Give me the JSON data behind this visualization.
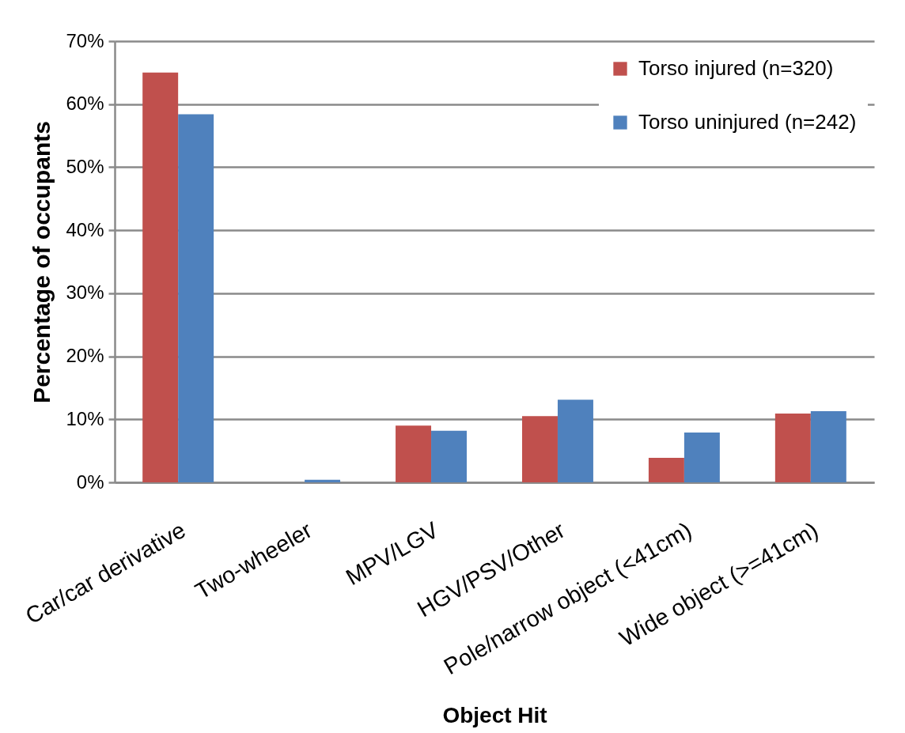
{
  "chart_data": {
    "type": "bar",
    "xlabel": "Object Hit",
    "ylabel": "Percentage of occupants",
    "categories": [
      "Car/car derivative",
      "Two-wheeler",
      "MPV/LGV",
      "HGV/PSV/Other",
      "Pole/narrow object (<41cm)",
      "Wide object (>=41cm)"
    ],
    "series": [
      {
        "name": "Torso injured (n=320)",
        "color": "#c0504d",
        "values": [
          65.0,
          0,
          9.0,
          10.5,
          3.9,
          10.9
        ]
      },
      {
        "name": "Torso uninjured (n=242)",
        "color": "#4f81bd",
        "values": [
          58.4,
          0.4,
          8.2,
          13.1,
          7.9,
          11.3
        ]
      }
    ],
    "ylim": [
      0,
      70
    ],
    "yticks": [
      {
        "value": 0,
        "label": "0%"
      },
      {
        "value": 10,
        "label": "10%"
      },
      {
        "value": 20,
        "label": "20%"
      },
      {
        "value": 30,
        "label": "30%"
      },
      {
        "value": 40,
        "label": "40%"
      },
      {
        "value": 50,
        "label": "50%"
      },
      {
        "value": 60,
        "label": "60%"
      },
      {
        "value": 70,
        "label": "70%"
      }
    ],
    "grid": "y",
    "legend": "top right"
  }
}
